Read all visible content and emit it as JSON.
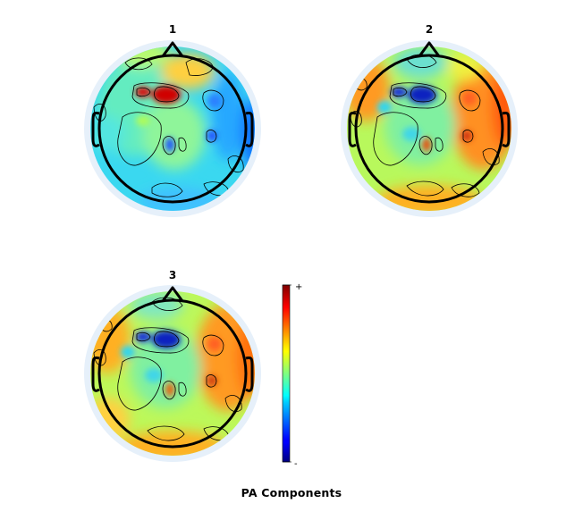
{
  "figure": {
    "title": "PA Components"
  },
  "topoplots": [
    {
      "label": "1"
    },
    {
      "label": "2"
    },
    {
      "label": "3"
    }
  ],
  "colorbar": {
    "top_label": "+",
    "bottom_label": "-",
    "colormap": "jet"
  },
  "colors": {
    "head_outline": "#000000",
    "halo": "#e8f1fa",
    "contour": "#000000"
  }
}
